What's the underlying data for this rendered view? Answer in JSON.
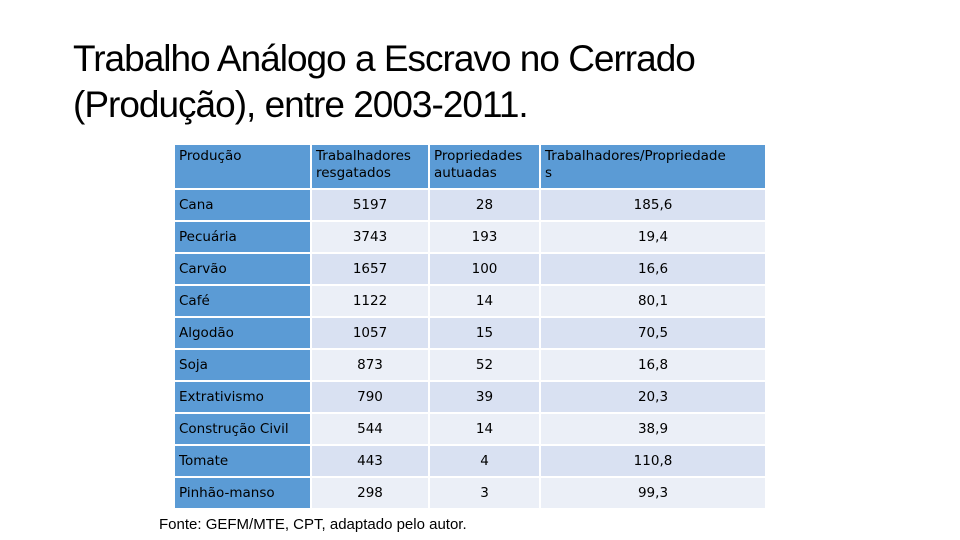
{
  "title": {
    "line1": "Trabalho Análogo a Escravo no Cerrado",
    "line2": "(Produção), entre 2003-2011."
  },
  "table": {
    "headers": [
      "Produção",
      "Trabalhadores resgatados",
      "Propriedades autuadas",
      "Trabalhadores/Propriedades"
    ],
    "header_lines": [
      [
        "Produção",
        ""
      ],
      [
        "Trabalhadores",
        "resgatados"
      ],
      [
        "Propriedades",
        "autuadas"
      ],
      [
        "Trabalhadores/Propriedade",
        "s"
      ]
    ],
    "rows": [
      [
        "Cana",
        "5197",
        "28",
        "185,6"
      ],
      [
        "Pecuária",
        "3743",
        "193",
        "19,4"
      ],
      [
        "Carvão",
        "1657",
        "100",
        "16,6"
      ],
      [
        "Café",
        "1122",
        "14",
        "80,1"
      ],
      [
        "Algodão",
        "1057",
        "15",
        "70,5"
      ],
      [
        "Soja",
        "873",
        "52",
        "16,8"
      ],
      [
        "Extrativismo",
        "790",
        "39",
        "20,3"
      ],
      [
        "Construção Civil",
        "544",
        "14",
        "38,9"
      ],
      [
        "Tomate",
        "443",
        "4",
        "110,8"
      ],
      [
        "Pinhão-manso",
        "298",
        "3",
        "99,3"
      ]
    ]
  },
  "source": "Fonte: GEFM/MTE, CPT, adaptado pelo autor.",
  "colors": {
    "header_bg": "#5b9bd5",
    "row_odd_bg": "#d9e1f2",
    "row_even_bg": "#ebeff7"
  }
}
